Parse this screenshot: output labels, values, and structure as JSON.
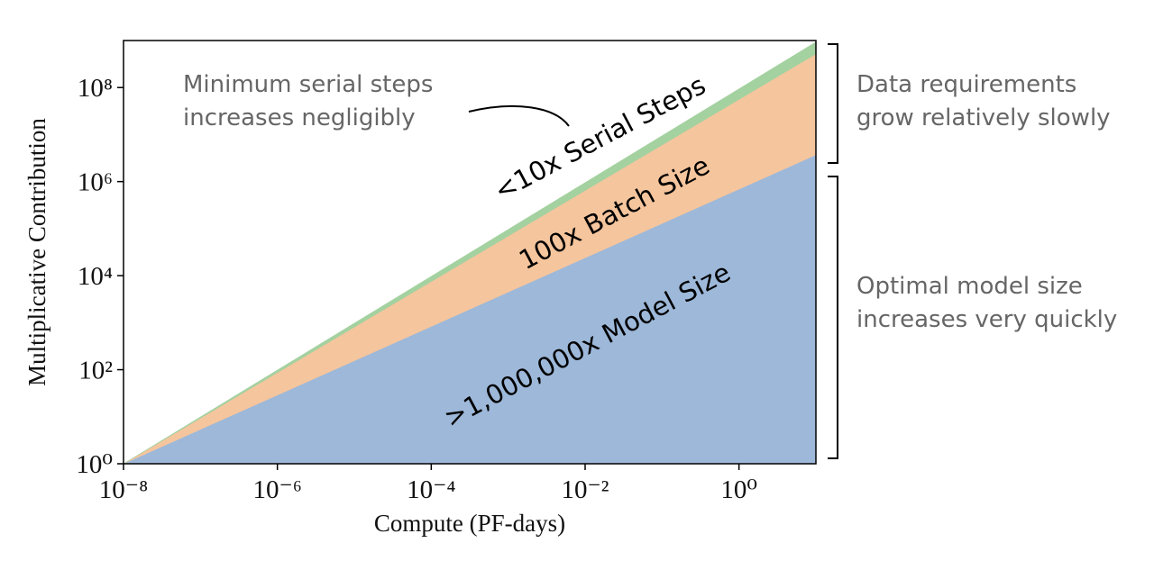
{
  "chart_data": {
    "type": "stacked-area",
    "log_x": true,
    "log_y": true,
    "x": [
      1e-08,
      10
    ],
    "xlim": [
      1e-08,
      10
    ],
    "ylim": [
      1,
      1000000000.0
    ],
    "xticks": [
      {
        "value": 1e-08,
        "label": "10⁻⁸"
      },
      {
        "value": 1e-06,
        "label": "10⁻⁶"
      },
      {
        "value": 0.0001,
        "label": "10⁻⁴"
      },
      {
        "value": 0.01,
        "label": "10⁻²"
      },
      {
        "value": 1,
        "label": "10⁰"
      }
    ],
    "yticks": [
      {
        "value": 1,
        "label": "10⁰"
      },
      {
        "value": 100,
        "label": "10²"
      },
      {
        "value": 10000,
        "label": "10⁴"
      },
      {
        "value": 1000000,
        "label": "10⁶"
      },
      {
        "value": 100000000,
        "label": "10⁸"
      }
    ],
    "xlabel": "Compute (PF-days)",
    "ylabel": "Multiplicative Contribution",
    "series": [
      {
        "name": ">1,000,000x Model Size",
        "color": "#9db8d9",
        "values": [
          1,
          3700000
        ]
      },
      {
        "name": "100x Batch Size",
        "color": "#f5c59d",
        "values": [
          1,
          140
        ]
      },
      {
        "name": "<10x Serial Steps",
        "color": "#a4d1a0",
        "values": [
          1,
          1.8
        ]
      }
    ],
    "annotations": {
      "serial": [
        "Minimum serial steps",
        "increases negligibly"
      ],
      "data": [
        "Data requirements",
        "grow relatively slowly"
      ],
      "model": [
        "Optimal model size",
        "increases very quickly"
      ]
    }
  }
}
